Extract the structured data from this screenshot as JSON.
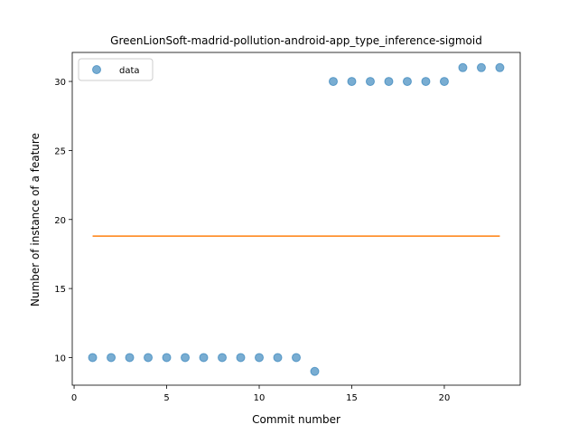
{
  "chart_data": {
    "type": "scatter",
    "title": "GreenLionSoft-madrid-pollution-android-app_type_inference-sigmoid",
    "xlabel": "Commit number",
    "ylabel": "Number of instance of a feature",
    "xlim": [
      -0.1,
      24.1
    ],
    "ylim": [
      8.0,
      32.1
    ],
    "xticks": [
      0,
      5,
      10,
      15,
      20
    ],
    "yticks": [
      10,
      15,
      20,
      25,
      30
    ],
    "grid": false,
    "legend_position": "top-left",
    "series": [
      {
        "name": "data",
        "kind": "scatter",
        "color": "#1f77b4",
        "x": [
          1,
          2,
          3,
          4,
          5,
          6,
          7,
          8,
          9,
          10,
          11,
          12,
          13,
          14,
          15,
          16,
          17,
          18,
          19,
          20,
          21,
          22,
          23
        ],
        "y": [
          10,
          10,
          10,
          10,
          10,
          10,
          10,
          10,
          10,
          10,
          10,
          10,
          9,
          30,
          30,
          30,
          30,
          30,
          30,
          30,
          31,
          31,
          31
        ]
      },
      {
        "kind": "line",
        "color": "#ff7f0e",
        "x": [
          1,
          23
        ],
        "y": [
          18.8,
          18.8
        ]
      }
    ]
  }
}
